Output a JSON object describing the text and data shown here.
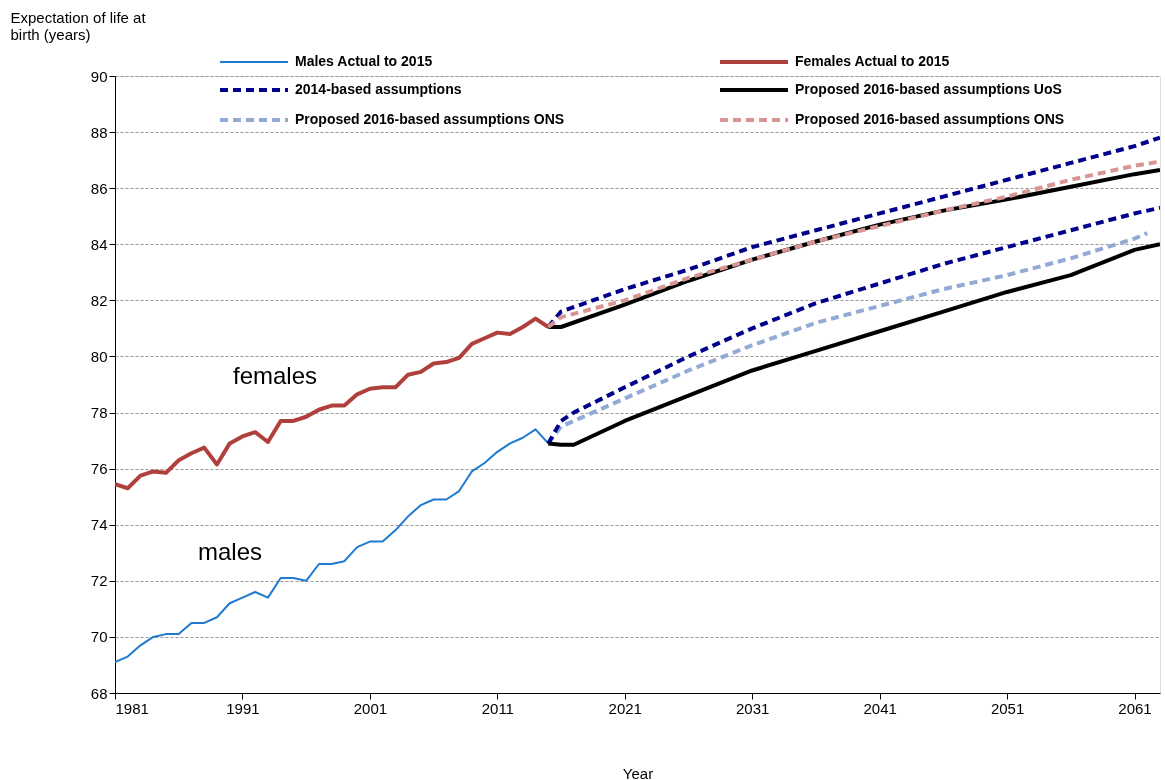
{
  "chart_data": {
    "type": "line",
    "xlabel": "Year",
    "ylabel": "Expectation of life at birth (years)",
    "xlim": [
      1981,
      2063
    ],
    "xticks": [
      1981,
      1991,
      2001,
      2011,
      2021,
      2031,
      2041,
      2051,
      2061
    ],
    "ylim": [
      68,
      90
    ],
    "yticks": [
      68,
      70,
      72,
      74,
      76,
      78,
      80,
      82,
      84,
      86,
      88,
      90
    ],
    "grid": "y",
    "legend": "top",
    "marker": "none",
    "annotations": [
      "females",
      "males"
    ],
    "series": [
      {
        "name": "Males Actual to 2015",
        "color": "#1f7bd0",
        "line_style": "solid",
        "x": [
          1981,
          1982,
          1983,
          1984,
          1985,
          1986,
          1987,
          1988,
          1989,
          1990,
          1991,
          1992,
          1993,
          1994,
          1995,
          1996,
          1997,
          1998,
          1999,
          2000,
          2001,
          2002,
          2003,
          2004,
          2005,
          2006,
          2007,
          2008,
          2009,
          2010,
          2011,
          2012,
          2013,
          2014,
          2015
        ],
        "values": [
          69.1,
          69.3,
          69.7,
          70.0,
          70.1,
          70.1,
          70.5,
          70.5,
          70.7,
          71.2,
          71.4,
          71.6,
          71.4,
          72.1,
          72.1,
          72.0,
          72.6,
          72.6,
          72.7,
          73.2,
          73.4,
          73.4,
          73.8,
          74.3,
          74.7,
          74.9,
          74.9,
          75.2,
          75.9,
          76.2,
          76.6,
          76.9,
          77.1,
          77.4,
          76.9
        ]
      },
      {
        "name": "Females Actual to 2015",
        "color": "#b0403c",
        "line_style": "solid",
        "x": [
          1981,
          1982,
          1983,
          1984,
          1985,
          1986,
          1987,
          1988,
          1989,
          1990,
          1991,
          1992,
          1993,
          1994,
          1995,
          1996,
          1997,
          1998,
          1999,
          2000,
          2001,
          2002,
          2003,
          2004,
          2005,
          2006,
          2007,
          2008,
          2009,
          2010,
          2011,
          2012,
          2013,
          2014,
          2015
        ],
        "values": [
          75.45,
          75.3,
          75.75,
          75.9,
          75.85,
          76.3,
          76.55,
          76.75,
          76.15,
          76.9,
          77.15,
          77.3,
          76.95,
          77.7,
          77.7,
          77.85,
          78.1,
          78.25,
          78.25,
          78.65,
          78.85,
          78.9,
          78.9,
          79.35,
          79.45,
          79.75,
          79.8,
          79.95,
          80.45,
          80.65,
          80.85,
          80.8,
          81.05,
          81.35,
          81.05
        ]
      },
      {
        "name": "2014-based assumptions",
        "color": "#00008b",
        "line_style": "dashed",
        "x": [
          2015,
          2016,
          2021,
          2026,
          2031,
          2036,
          2041,
          2046,
          2051,
          2056,
          2061,
          2063
        ],
        "values": [
          81.05,
          81.6,
          82.4,
          83.1,
          83.9,
          84.5,
          85.1,
          85.7,
          86.3,
          86.9,
          87.5,
          87.8
        ]
      },
      {
        "name": "Proposed 2016-based assumptions UoS",
        "color": "#000000",
        "line_style": "solid",
        "x": [
          2015,
          2016,
          2021,
          2026,
          2031,
          2036,
          2041,
          2046,
          2051,
          2056,
          2061,
          2063
        ],
        "values": [
          81.05,
          81.05,
          81.85,
          82.7,
          83.45,
          84.1,
          84.7,
          85.2,
          85.6,
          86.05,
          86.5,
          86.65
        ]
      },
      {
        "name": "Proposed 2016-based assumptions ONS",
        "color": "#93aad6",
        "line_style": "dashed",
        "x": [
          2015,
          2016,
          2021,
          2026,
          2031,
          2036,
          2041,
          2046,
          2051,
          2056,
          2061,
          2062
        ],
        "values": [
          76.9,
          77.5,
          78.5,
          79.5,
          80.4,
          81.2,
          81.8,
          82.4,
          82.9,
          83.5,
          84.2,
          84.4
        ]
      },
      {
        "name": "Proposed 2016-based assumptions ONS",
        "color": "#d99594",
        "line_style": "dashed",
        "x": [
          2015,
          2016,
          2021,
          2026,
          2031,
          2036,
          2041,
          2046,
          2051,
          2056,
          2061,
          2063
        ],
        "values": [
          81.05,
          81.4,
          82.0,
          82.8,
          83.45,
          84.1,
          84.65,
          85.2,
          85.7,
          86.3,
          86.8,
          86.95
        ]
      },
      {
        "color": "#00008b",
        "line_style": "dashed",
        "x": [
          2015,
          2016,
          2017,
          2021,
          2026,
          2031,
          2036,
          2041,
          2046,
          2051,
          2056,
          2061,
          2063
        ],
        "values": [
          76.9,
          77.7,
          78.0,
          78.9,
          80.0,
          81.0,
          81.9,
          82.6,
          83.3,
          83.9,
          84.5,
          85.1,
          85.3
        ]
      },
      {
        "color": "#000000",
        "line_style": "solid",
        "x": [
          2015,
          2016,
          2017,
          2021,
          2026,
          2031,
          2036,
          2041,
          2046,
          2051,
          2056,
          2061,
          2063
        ],
        "values": [
          76.9,
          76.85,
          76.85,
          77.7,
          78.6,
          79.5,
          80.2,
          80.9,
          81.6,
          82.3,
          82.9,
          83.8,
          84.0
        ]
      }
    ]
  }
}
